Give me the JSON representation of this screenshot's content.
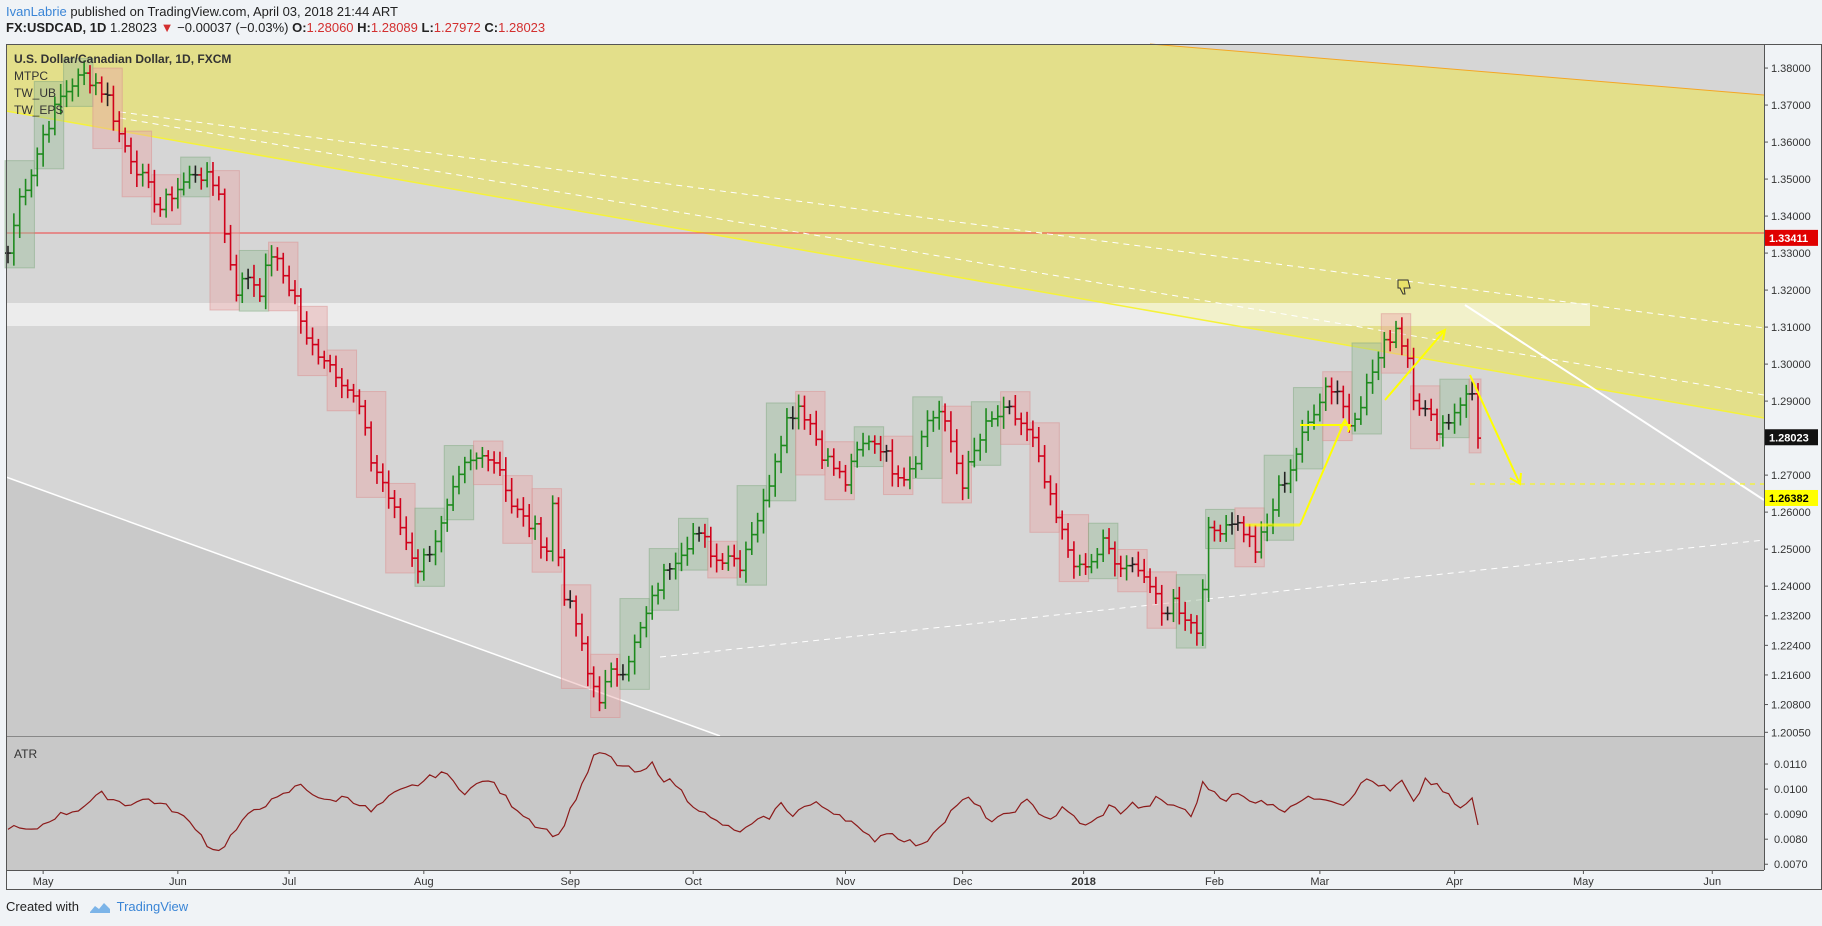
{
  "header": {
    "author": "IvanLabrie",
    "published_text": "published on TradingView.com, April 03, 2018 21:44 ART",
    "symbol": "FX:USDCAD, 1D",
    "last": "1.28023",
    "change_arrow": "▼",
    "change": "−0.00037 (−0.03%)",
    "open_label": "O:",
    "open": "1.28060",
    "high_label": "H:",
    "high": "1.28089",
    "low_label": "L:",
    "low": "1.27972",
    "close_label": "C:",
    "close": "1.28023"
  },
  "legend": {
    "title": "U.S. Dollar/Canadian Dollar, 1D, FXCM",
    "studies": [
      "MTPC",
      "TW_UB",
      "TW_EPS"
    ]
  },
  "atr_label": "ATR",
  "footer": {
    "created_with": "Created with",
    "brand": "TradingView",
    "brand_icon": "tradingview-logo-icon"
  },
  "colors": {
    "up": "#1e8a1e",
    "down": "#d0021b",
    "neutral": "#222222",
    "channel": "#e8e26a",
    "resistance_line": "#f04040",
    "atr_line": "#8b1a1a",
    "plot_bg": "#d6d6d6",
    "target_label_bg": "#ffff00"
  },
  "chart_data": [
    {
      "type": "ohlc",
      "title": "U.S. Dollar/Canadian Dollar, 1D, FXCM",
      "x_tick_labels": [
        "May",
        "Jun",
        "Jul",
        "Aug",
        "Sep",
        "Oct",
        "Nov",
        "Dec",
        "2018",
        "Feb",
        "Mar",
        "Apr",
        "May",
        "Jun"
      ],
      "y_tick_labels": [
        "1.38000",
        "1.37000",
        "1.36000",
        "1.35000",
        "1.34000",
        "1.33000",
        "1.32000",
        "1.31000",
        "1.30000",
        "1.29000",
        "1.28000",
        "1.27000",
        "1.26000",
        "1.25000",
        "1.24000",
        "1.23200",
        "1.22400",
        "1.21600",
        "1.20800",
        "1.20050"
      ],
      "ylim": [
        1.1995,
        1.3865
      ],
      "price_labels": [
        {
          "value": "1.33411",
          "kind": "resistance"
        },
        {
          "value": "1.28023",
          "kind": "last"
        },
        {
          "value": "1.26382",
          "kind": "target"
        }
      ],
      "path": [
        [
          0,
          1.33
        ],
        [
          2,
          1.345
        ],
        [
          4,
          1.352
        ],
        [
          6,
          1.362
        ],
        [
          9,
          1.372
        ],
        [
          11,
          1.376
        ],
        [
          13,
          1.378
        ],
        [
          15,
          1.376
        ],
        [
          17,
          1.372
        ],
        [
          19,
          1.362
        ],
        [
          21,
          1.356
        ],
        [
          23,
          1.35
        ],
        [
          26,
          1.342
        ],
        [
          28,
          1.346
        ],
        [
          30,
          1.349
        ],
        [
          32,
          1.352
        ],
        [
          34,
          1.35
        ],
        [
          36,
          1.347
        ],
        [
          37,
          1.335
        ],
        [
          39,
          1.32
        ],
        [
          41,
          1.324
        ],
        [
          43,
          1.32
        ],
        [
          45,
          1.33
        ],
        [
          47,
          1.324
        ],
        [
          49,
          1.318
        ],
        [
          51,
          1.306
        ],
        [
          54,
          1.302
        ],
        [
          57,
          1.296
        ],
        [
          60,
          1.288
        ],
        [
          62,
          1.274
        ],
        [
          64,
          1.268
        ],
        [
          66,
          1.26
        ],
        [
          68,
          1.252
        ],
        [
          70,
          1.245
        ],
        [
          72,
          1.25
        ],
        [
          74,
          1.256
        ],
        [
          76,
          1.265
        ],
        [
          78,
          1.272
        ],
        [
          80,
          1.274
        ],
        [
          82,
          1.276
        ],
        [
          84,
          1.272
        ],
        [
          86,
          1.262
        ],
        [
          88,
          1.258
        ],
        [
          90,
          1.255
        ],
        [
          92,
          1.25
        ],
        [
          93,
          1.262
        ],
        [
          94,
          1.248
        ],
        [
          95,
          1.238
        ],
        [
          97,
          1.23
        ],
        [
          99,
          1.216
        ],
        [
          101,
          1.21
        ],
        [
          103,
          1.216
        ],
        [
          105,
          1.218
        ],
        [
          107,
          1.224
        ],
        [
          109,
          1.232
        ],
        [
          111,
          1.24
        ],
        [
          113,
          1.246
        ],
        [
          115,
          1.25
        ],
        [
          117,
          1.254
        ],
        [
          119,
          1.252
        ],
        [
          121,
          1.247
        ],
        [
          123,
          1.249
        ],
        [
          125,
          1.246
        ],
        [
          127,
          1.255
        ],
        [
          129,
          1.262
        ],
        [
          131,
          1.275
        ],
        [
          133,
          1.285
        ],
        [
          135,
          1.289
        ],
        [
          137,
          1.284
        ],
        [
          139,
          1.276
        ],
        [
          141,
          1.272
        ],
        [
          143,
          1.268
        ],
        [
          145,
          1.276
        ],
        [
          147,
          1.28
        ],
        [
          149,
          1.278
        ],
        [
          151,
          1.272
        ],
        [
          153,
          1.27
        ],
        [
          155,
          1.275
        ],
        [
          157,
          1.285
        ],
        [
          159,
          1.287
        ],
        [
          161,
          1.279
        ],
        [
          163,
          1.268
        ],
        [
          165,
          1.276
        ],
        [
          167,
          1.283
        ],
        [
          169,
          1.286
        ],
        [
          171,
          1.287
        ],
        [
          173,
          1.284
        ],
        [
          175,
          1.279
        ],
        [
          177,
          1.268
        ],
        [
          179,
          1.258
        ],
        [
          181,
          1.25
        ],
        [
          183,
          1.244
        ],
        [
          185,
          1.246
        ],
        [
          187,
          1.252
        ],
        [
          189,
          1.246
        ],
        [
          191,
          1.244
        ],
        [
          193,
          1.246
        ],
        [
          195,
          1.24
        ],
        [
          197,
          1.232
        ],
        [
          199,
          1.236
        ],
        [
          201,
          1.232
        ],
        [
          203,
          1.228
        ],
        [
          205,
          1.254
        ],
        [
          207,
          1.256
        ],
        [
          209,
          1.258
        ],
        [
          211,
          1.255
        ],
        [
          213,
          1.25
        ],
        [
          215,
          1.256
        ],
        [
          217,
          1.266
        ],
        [
          219,
          1.272
        ],
        [
          221,
          1.28
        ],
        [
          223,
          1.288
        ],
        [
          225,
          1.294
        ],
        [
          227,
          1.293
        ],
        [
          229,
          1.284
        ],
        [
          231,
          1.29
        ],
        [
          233,
          1.298
        ],
        [
          235,
          1.305
        ],
        [
          237,
          1.31
        ],
        [
          239,
          1.302
        ],
        [
          240,
          1.292
        ],
        [
          242,
          1.287
        ],
        [
          244,
          1.283
        ],
        [
          246,
          1.285
        ],
        [
          248,
          1.29
        ],
        [
          250,
          1.292
        ],
        [
          251,
          1.28
        ]
      ],
      "bars": "interpolated daily OHLC bars along path (index 0 = late April 2017, index 251 = April 3, 2018)"
    },
    {
      "type": "line",
      "title": "ATR",
      "y_tick_labels": [
        "0.0110",
        "0.0100",
        "0.0090",
        "0.0080",
        "0.0070"
      ],
      "ylim": [
        0.00685,
        0.0118
      ],
      "path": [
        [
          0,
          0.0085
        ],
        [
          4,
          0.0083
        ],
        [
          8,
          0.0089
        ],
        [
          12,
          0.0092
        ],
        [
          16,
          0.0098
        ],
        [
          20,
          0.0094
        ],
        [
          24,
          0.0096
        ],
        [
          28,
          0.0092
        ],
        [
          32,
          0.0085
        ],
        [
          34,
          0.0078
        ],
        [
          36,
          0.0075
        ],
        [
          38,
          0.0081
        ],
        [
          42,
          0.0092
        ],
        [
          46,
          0.0096
        ],
        [
          50,
          0.0102
        ],
        [
          54,
          0.0095
        ],
        [
          58,
          0.0097
        ],
        [
          62,
          0.0091
        ],
        [
          66,
          0.0098
        ],
        [
          70,
          0.0102
        ],
        [
          74,
          0.0107
        ],
        [
          78,
          0.0099
        ],
        [
          82,
          0.0104
        ],
        [
          86,
          0.0094
        ],
        [
          90,
          0.0086
        ],
        [
          94,
          0.0081
        ],
        [
          96,
          0.0092
        ],
        [
          98,
          0.0101
        ],
        [
          100,
          0.0113
        ],
        [
          102,
          0.0114
        ],
        [
          104,
          0.011
        ],
        [
          106,
          0.0108
        ],
        [
          108,
          0.0106
        ],
        [
          110,
          0.011
        ],
        [
          112,
          0.0104
        ],
        [
          114,
          0.0102
        ],
        [
          116,
          0.0096
        ],
        [
          118,
          0.0092
        ],
        [
          120,
          0.0088
        ],
        [
          122,
          0.0086
        ],
        [
          124,
          0.0083
        ],
        [
          126,
          0.0084
        ],
        [
          128,
          0.0087
        ],
        [
          130,
          0.0089
        ],
        [
          132,
          0.0094
        ],
        [
          134,
          0.009
        ],
        [
          136,
          0.0093
        ],
        [
          138,
          0.0094
        ],
        [
          140,
          0.0092
        ],
        [
          142,
          0.009
        ],
        [
          144,
          0.0087
        ],
        [
          146,
          0.0082
        ],
        [
          148,
          0.008
        ],
        [
          150,
          0.0083
        ],
        [
          152,
          0.0081
        ],
        [
          154,
          0.0079
        ],
        [
          156,
          0.0077
        ],
        [
          158,
          0.0083
        ],
        [
          160,
          0.0088
        ],
        [
          162,
          0.0094
        ],
        [
          164,
          0.0096
        ],
        [
          166,
          0.0092
        ],
        [
          168,
          0.0087
        ],
        [
          170,
          0.0089
        ],
        [
          172,
          0.0092
        ],
        [
          174,
          0.0095
        ],
        [
          176,
          0.0091
        ],
        [
          178,
          0.0088
        ],
        [
          180,
          0.0092
        ],
        [
          182,
          0.0089
        ],
        [
          184,
          0.0085
        ],
        [
          186,
          0.0088
        ],
        [
          188,
          0.0093
        ],
        [
          190,
          0.0091
        ],
        [
          192,
          0.0094
        ],
        [
          194,
          0.0092
        ],
        [
          196,
          0.0096
        ],
        [
          198,
          0.0094
        ],
        [
          200,
          0.0093
        ],
        [
          202,
          0.0089
        ],
        [
          204,
          0.0102
        ],
        [
          206,
          0.0099
        ],
        [
          208,
          0.0096
        ],
        [
          210,
          0.0098
        ],
        [
          212,
          0.0095
        ],
        [
          214,
          0.0096
        ],
        [
          216,
          0.0093
        ],
        [
          218,
          0.0092
        ],
        [
          220,
          0.0095
        ],
        [
          222,
          0.0096
        ],
        [
          224,
          0.0097
        ],
        [
          226,
          0.0096
        ],
        [
          228,
          0.0094
        ],
        [
          230,
          0.0099
        ],
        [
          232,
          0.0104
        ],
        [
          234,
          0.0102
        ],
        [
          236,
          0.0099
        ],
        [
          238,
          0.0103
        ],
        [
          240,
          0.0094
        ],
        [
          242,
          0.0104
        ],
        [
          244,
          0.0101
        ],
        [
          246,
          0.0097
        ],
        [
          248,
          0.0092
        ],
        [
          250,
          0.0096
        ],
        [
          251,
          0.0085
        ]
      ]
    }
  ]
}
